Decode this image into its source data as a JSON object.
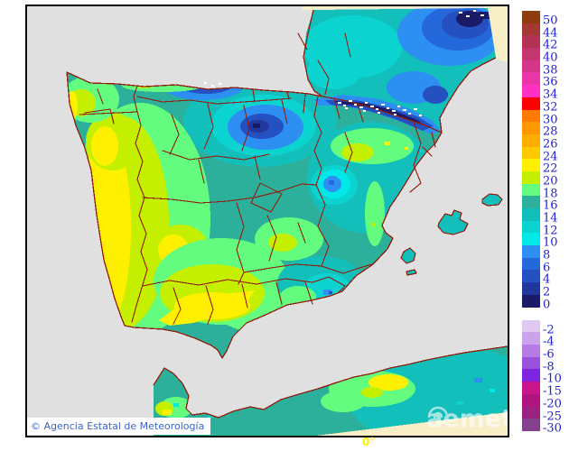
{
  "figure": {
    "type": "temperature-map",
    "region": "Iberian Peninsula and southern France",
    "attribution": "© Agencia Estatal de Meteorología",
    "watermark_text": "aemet",
    "bottom_axis_label": "0°"
  },
  "colors": {
    "page_bg": "#FFFFFF",
    "sea": "#E0E0E0",
    "no_data_land": "#F8EFC6",
    "coast": "#901D0D",
    "frame": "#000000",
    "attribution_text": "#3C64D2",
    "attribution_bg": "#FFFFFF",
    "legend_text": "#2020D8",
    "axis_label": "#FFF000",
    "watermark": "#FFFFFF",
    "snow_speck": "#FFFFFF"
  },
  "legend": {
    "upper": [
      {
        "value": "50",
        "color": "#8D3B0F"
      },
      {
        "value": "44",
        "color": "#A53734"
      },
      {
        "value": "42",
        "color": "#B23354"
      },
      {
        "value": "40",
        "color": "#C53570"
      },
      {
        "value": "38",
        "color": "#D6358D"
      },
      {
        "value": "36",
        "color": "#EA35A9"
      },
      {
        "value": "34",
        "color": "#FF30C3"
      },
      {
        "value": "32",
        "color": "#FF0000"
      },
      {
        "value": "30",
        "color": "#FF7C00"
      },
      {
        "value": "28",
        "color": "#FF9800"
      },
      {
        "value": "26",
        "color": "#FFAE00"
      },
      {
        "value": "24",
        "color": "#FFC900"
      },
      {
        "value": "22",
        "color": "#FFF000"
      },
      {
        "value": "20",
        "color": "#C4F000"
      },
      {
        "value": "18",
        "color": "#63FC7E"
      },
      {
        "value": "16",
        "color": "#2CB09C"
      },
      {
        "value": "14",
        "color": "#12BFBA"
      },
      {
        "value": "12",
        "color": "#0BD3D0"
      },
      {
        "value": "10",
        "color": "#00E9E9"
      },
      {
        "value": "8",
        "color": "#2D8FF2"
      },
      {
        "value": "6",
        "color": "#2568DC"
      },
      {
        "value": "4",
        "color": "#2450C0"
      },
      {
        "value": "2",
        "color": "#20389E"
      },
      {
        "value": "0",
        "color": "#1A1A66"
      }
    ],
    "lower": [
      {
        "value": "-2",
        "color": "#DFC9F2"
      },
      {
        "value": "-4",
        "color": "#CBA3EC"
      },
      {
        "value": "-6",
        "color": "#B37BE3"
      },
      {
        "value": "-8",
        "color": "#9950DC"
      },
      {
        "value": "-10",
        "color": "#7F25E2"
      },
      {
        "value": "-15",
        "color": "#C9148C"
      },
      {
        "value": "-20",
        "color": "#B0157F"
      },
      {
        "value": "-25",
        "color": "#9A2280"
      },
      {
        "value": "-30",
        "color": "#85418F"
      }
    ]
  }
}
